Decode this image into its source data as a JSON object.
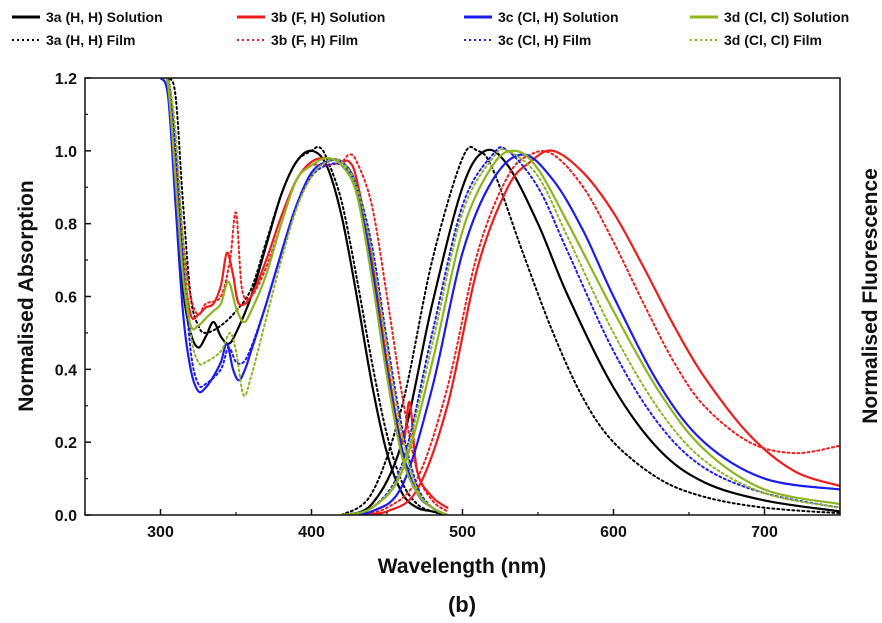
{
  "chart_data": {
    "type": "line",
    "panel_label": "(b)",
    "xlabel": "Wavelength (nm)",
    "ylabel_left": "Normalised Absorption",
    "ylabel_right": "Normalised Fluorescence",
    "xlim": [
      250,
      750
    ],
    "ylim": [
      0,
      1.2
    ],
    "x_ticks": [
      300,
      400,
      500,
      600,
      700
    ],
    "y_ticks": [
      0.0,
      0.2,
      0.4,
      0.6,
      0.8,
      1.0,
      1.2
    ],
    "x_tick_labels": [
      "300",
      "400",
      "500",
      "600",
      "700"
    ],
    "y_tick_labels": [
      "0.0",
      "0.2",
      "0.4",
      "0.6",
      "0.8",
      "1.0",
      "1.2"
    ],
    "grid": false,
    "legend_position": "top",
    "series": [
      {
        "name": "3a (H, H) Solution",
        "color": "#000000",
        "style": "solid",
        "absorption": {
          "x": [
            300,
            305,
            310,
            315,
            320,
            325,
            330,
            335,
            340,
            345,
            350,
            360,
            370,
            380,
            390,
            400,
            410,
            420,
            430,
            440,
            450,
            460,
            470,
            480,
            490
          ],
          "y": [
            1.2,
            1.18,
            0.9,
            0.62,
            0.5,
            0.46,
            0.49,
            0.53,
            0.49,
            0.47,
            0.5,
            0.6,
            0.74,
            0.88,
            0.97,
            1.0,
            0.96,
            0.82,
            0.6,
            0.36,
            0.17,
            0.06,
            0.02,
            0.01,
            0.0
          ]
        },
        "fluorescence": {
          "x": [
            420,
            440,
            460,
            480,
            500,
            515,
            530,
            550,
            570,
            600,
            630,
            660,
            700,
            750
          ],
          "y": [
            0.0,
            0.03,
            0.2,
            0.58,
            0.9,
            1.0,
            0.96,
            0.8,
            0.6,
            0.35,
            0.18,
            0.09,
            0.04,
            0.01
          ]
        }
      },
      {
        "name": "3a (H, H) Film",
        "color": "#000000",
        "style": "dotted",
        "absorption": {
          "x": [
            300,
            305,
            310,
            315,
            320,
            325,
            330,
            340,
            350,
            360,
            370,
            380,
            390,
            400,
            405,
            410,
            420,
            430,
            440,
            450,
            460,
            470,
            480,
            490
          ],
          "y": [
            1.2,
            1.2,
            1.15,
            0.85,
            0.6,
            0.52,
            0.5,
            0.52,
            0.56,
            0.62,
            0.75,
            0.88,
            0.97,
            1.0,
            1.01,
            0.98,
            0.86,
            0.65,
            0.42,
            0.22,
            0.09,
            0.03,
            0.01,
            0.0
          ]
        },
        "fluorescence": {
          "x": [
            420,
            440,
            460,
            480,
            500,
            510,
            520,
            540,
            560,
            580,
            600,
            630,
            660,
            700,
            750
          ],
          "y": [
            0.0,
            0.06,
            0.3,
            0.7,
            0.98,
            1.0,
            0.95,
            0.72,
            0.5,
            0.32,
            0.2,
            0.1,
            0.05,
            0.02,
            0.005
          ]
        }
      },
      {
        "name": "3b (F, H) Solution",
        "color": "#ee1c1c",
        "style": "solid",
        "absorption": {
          "x": [
            300,
            305,
            310,
            315,
            320,
            325,
            330,
            335,
            340,
            344,
            348,
            352,
            360,
            370,
            380,
            390,
            400,
            410,
            420,
            425,
            430,
            440,
            450,
            460,
            465,
            470,
            480,
            490
          ],
          "y": [
            1.2,
            1.2,
            0.95,
            0.7,
            0.55,
            0.55,
            0.57,
            0.58,
            0.63,
            0.72,
            0.66,
            0.58,
            0.6,
            0.7,
            0.82,
            0.92,
            0.97,
            0.98,
            0.97,
            0.97,
            0.92,
            0.7,
            0.42,
            0.2,
            0.31,
            0.12,
            0.05,
            0.02
          ]
        },
        "fluorescence": {
          "x": [
            430,
            450,
            470,
            490,
            510,
            530,
            545,
            560,
            580,
            600,
            620,
            640,
            660,
            690,
            720,
            750
          ],
          "y": [
            0.0,
            0.01,
            0.07,
            0.3,
            0.68,
            0.9,
            0.97,
            1.0,
            0.94,
            0.83,
            0.68,
            0.52,
            0.38,
            0.22,
            0.12,
            0.08
          ]
        }
      },
      {
        "name": "3b (F, H) Film",
        "color": "#ee1c1c",
        "style": "dotted",
        "absorption": {
          "x": [
            300,
            305,
            310,
            315,
            320,
            325,
            330,
            340,
            346,
            350,
            354,
            360,
            370,
            380,
            390,
            400,
            410,
            420,
            425,
            430,
            440,
            450,
            460,
            470,
            480,
            490
          ],
          "y": [
            1.2,
            1.2,
            1.0,
            0.75,
            0.6,
            0.55,
            0.58,
            0.6,
            0.7,
            0.83,
            0.62,
            0.6,
            0.68,
            0.8,
            0.92,
            0.96,
            0.96,
            0.97,
            0.99,
            0.97,
            0.85,
            0.6,
            0.33,
            0.12,
            0.04,
            0.01
          ]
        },
        "fluorescence": {
          "x": [
            430,
            450,
            470,
            490,
            510,
            530,
            545,
            560,
            580,
            600,
            620,
            640,
            660,
            690,
            720,
            750
          ],
          "y": [
            0.0,
            0.02,
            0.1,
            0.35,
            0.72,
            0.93,
            0.99,
            0.99,
            0.9,
            0.75,
            0.58,
            0.42,
            0.3,
            0.2,
            0.17,
            0.19
          ]
        }
      },
      {
        "name": "3c (Cl, H) Solution",
        "color": "#1c1cf0",
        "style": "solid",
        "absorption": {
          "x": [
            300,
            305,
            310,
            315,
            320,
            325,
            330,
            335,
            340,
            344,
            348,
            352,
            356,
            360,
            370,
            380,
            390,
            400,
            410,
            420,
            430,
            440,
            450,
            460,
            470,
            480,
            490
          ],
          "y": [
            1.2,
            1.15,
            0.85,
            0.55,
            0.4,
            0.34,
            0.35,
            0.38,
            0.42,
            0.47,
            0.4,
            0.37,
            0.4,
            0.45,
            0.58,
            0.72,
            0.85,
            0.94,
            0.97,
            0.97,
            0.9,
            0.68,
            0.4,
            0.18,
            0.06,
            0.02,
            0.0
          ]
        },
        "fluorescence": {
          "x": [
            420,
            440,
            460,
            480,
            500,
            520,
            540,
            560,
            580,
            600,
            630,
            660,
            700,
            750
          ],
          "y": [
            0.0,
            0.01,
            0.08,
            0.35,
            0.72,
            0.92,
            0.99,
            0.92,
            0.78,
            0.6,
            0.36,
            0.2,
            0.1,
            0.07
          ]
        }
      },
      {
        "name": "3c (Cl, H) Film",
        "color": "#1c1cf0",
        "style": "dotted",
        "absorption": {
          "x": [
            300,
            305,
            310,
            315,
            320,
            325,
            330,
            340,
            345,
            350,
            355,
            360,
            370,
            380,
            390,
            400,
            410,
            420,
            430,
            440,
            450,
            460,
            470,
            480,
            490
          ],
          "y": [
            1.2,
            1.2,
            1.0,
            0.7,
            0.45,
            0.36,
            0.36,
            0.4,
            0.46,
            0.42,
            0.42,
            0.46,
            0.58,
            0.72,
            0.85,
            0.93,
            0.96,
            0.96,
            0.9,
            0.74,
            0.48,
            0.24,
            0.08,
            0.02,
            0.0
          ]
        },
        "fluorescence": {
          "x": [
            420,
            440,
            460,
            480,
            500,
            520,
            530,
            550,
            570,
            600,
            630,
            660,
            700,
            750
          ],
          "y": [
            0.0,
            0.02,
            0.14,
            0.5,
            0.85,
            0.99,
            1.0,
            0.9,
            0.72,
            0.45,
            0.25,
            0.13,
            0.06,
            0.02
          ]
        }
      },
      {
        "name": "3d (Cl, Cl) Solution",
        "color": "#8db520",
        "style": "solid",
        "absorption": {
          "x": [
            300,
            305,
            310,
            315,
            320,
            325,
            330,
            335,
            340,
            345,
            350,
            355,
            360,
            370,
            380,
            390,
            400,
            410,
            420,
            430,
            440,
            450,
            460,
            470,
            480,
            490
          ],
          "y": [
            1.2,
            1.18,
            0.92,
            0.65,
            0.52,
            0.52,
            0.54,
            0.56,
            0.58,
            0.64,
            0.57,
            0.53,
            0.56,
            0.66,
            0.8,
            0.92,
            0.96,
            0.98,
            0.96,
            0.88,
            0.65,
            0.38,
            0.16,
            0.06,
            0.02,
            0.0
          ]
        },
        "fluorescence": {
          "x": [
            420,
            440,
            460,
            480,
            500,
            520,
            535,
            550,
            570,
            600,
            630,
            660,
            700,
            750
          ],
          "y": [
            0.0,
            0.02,
            0.12,
            0.42,
            0.78,
            0.96,
            1.0,
            0.95,
            0.8,
            0.56,
            0.34,
            0.18,
            0.07,
            0.03
          ]
        }
      },
      {
        "name": "3d (Cl, Cl) Film",
        "color": "#8db520",
        "style": "dotted",
        "absorption": {
          "x": [
            300,
            305,
            310,
            315,
            320,
            325,
            330,
            340,
            346,
            350,
            355,
            360,
            370,
            380,
            390,
            400,
            410,
            420,
            430,
            440,
            450,
            460,
            470,
            480,
            490
          ],
          "y": [
            1.2,
            1.2,
            1.05,
            0.75,
            0.5,
            0.42,
            0.42,
            0.45,
            0.5,
            0.45,
            0.33,
            0.38,
            0.54,
            0.7,
            0.84,
            0.93,
            0.97,
            0.97,
            0.9,
            0.72,
            0.46,
            0.22,
            0.07,
            0.02,
            0.0
          ]
        },
        "fluorescence": {
          "x": [
            420,
            440,
            460,
            480,
            500,
            520,
            530,
            550,
            570,
            600,
            630,
            660,
            700,
            750
          ],
          "y": [
            0.0,
            0.02,
            0.13,
            0.47,
            0.83,
            0.98,
            1.0,
            0.93,
            0.76,
            0.5,
            0.29,
            0.15,
            0.06,
            0.02
          ]
        }
      }
    ]
  }
}
